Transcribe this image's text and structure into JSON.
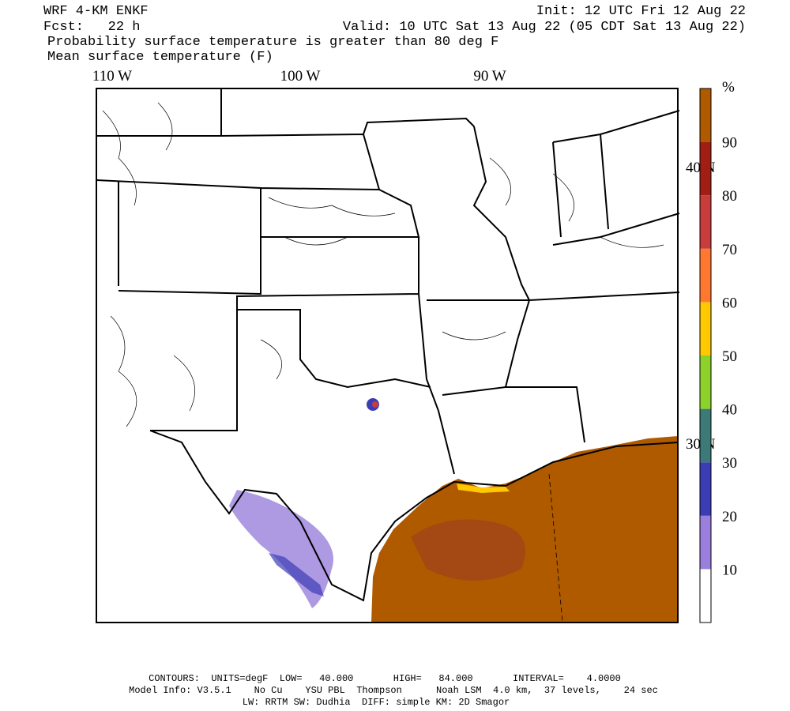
{
  "header": {
    "model": "WRF 4-KM ENKF",
    "forecast": "Fcst:   22 h",
    "init": "Init: 12 UTC Fri 12 Aug 22",
    "valid": "Valid: 10 UTC Sat 13 Aug 22 (05 CDT Sat 13 Aug 22)",
    "field1": "Probability surface temperature is greater than 80 deg F",
    "field2": "Mean surface temperature (F)"
  },
  "map": {
    "lon_labels": [
      "110 W",
      "100 W",
      "90 W"
    ],
    "lat_labels": [
      "40 N",
      "30 N"
    ]
  },
  "colorbar": {
    "unit": "%",
    "levels": [
      10,
      20,
      30,
      40,
      50,
      60,
      70,
      80,
      90
    ],
    "colors": [
      "#ffffff",
      "#9a7fdc",
      "#3c3cb4",
      "#3c7a78",
      "#8cd22a",
      "#ffc800",
      "#ff7830",
      "#c83c3c",
      "#a01e14",
      "#b05a00"
    ]
  },
  "footer": {
    "contours": "CONTOURS:  UNITS=degF  LOW=   40.000       HIGH=   84.000       INTERVAL=    4.0000",
    "model_info": "Model Info: V3.5.1    No Cu    YSU PBL  Thompson      Noah LSM  4.0 km,  37 levels,    24 sec",
    "physics": "LW: RRTM SW: Dudhia  DIFF: simple KM: 2D Smagor"
  }
}
